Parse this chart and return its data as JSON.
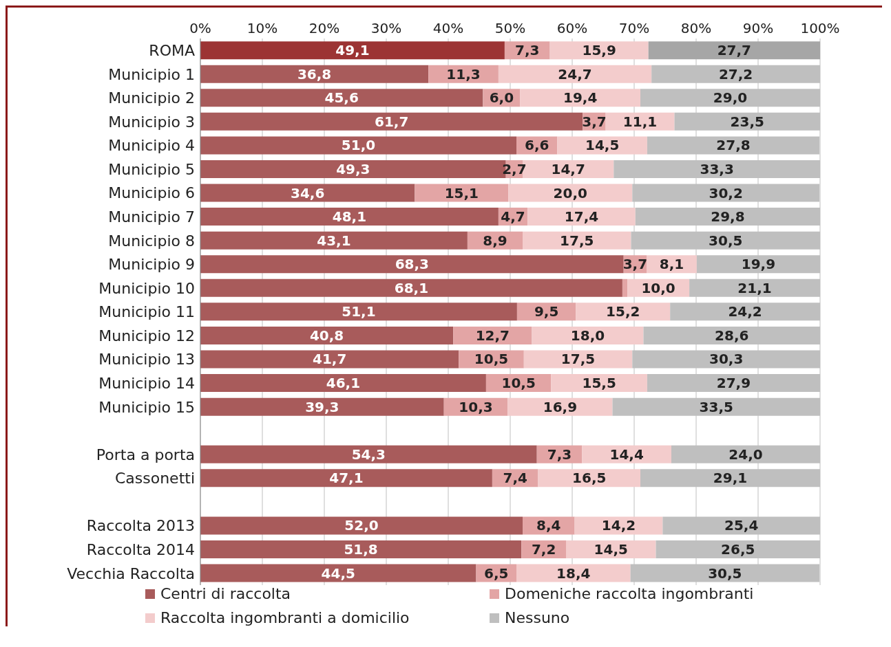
{
  "chart_data": {
    "type": "bar",
    "orientation": "horizontal",
    "stacked": true,
    "categories": [
      "ROMA",
      "Municipio 1",
      "Municipio 2",
      "Municipio 3",
      "Municipio 4",
      "Municipio 5",
      "Municipio 6",
      "Municipio 7",
      "Municipio 8",
      "Municipio 9",
      "Municipio 10",
      "Municipio 11",
      "Municipio 12",
      "Municipio 13",
      "Municipio 14",
      "Municipio 15",
      null,
      "Porta a porta",
      "Cassonetti",
      null,
      "Raccolta 2013",
      "Raccolta 2014",
      "Vecchia Raccolta"
    ],
    "series": [
      {
        "name": "Centri di raccolta",
        "color": "#a85b5b",
        "colors": [
          "#9c3434",
          "#a85b5b",
          "#a85b5b",
          "#a85b5b",
          "#a85b5b",
          "#a85b5b",
          "#a85b5b",
          "#a85b5b",
          "#a85b5b",
          "#a85b5b",
          "#a85b5b",
          "#a85b5b",
          "#a85b5b",
          "#a85b5b",
          "#a85b5b",
          "#a85b5b",
          "#a85b5b",
          "#a85b5b",
          "#a85b5b",
          "#a85b5b",
          "#a85b5b",
          "#a85b5b",
          "#a85b5b"
        ],
        "values": [
          49.1,
          36.8,
          45.6,
          61.7,
          51.0,
          49.3,
          34.6,
          48.1,
          43.1,
          68.3,
          68.1,
          51.1,
          40.8,
          41.7,
          46.1,
          39.3,
          null,
          54.3,
          47.1,
          null,
          52.0,
          51.8,
          44.5
        ],
        "value_labels": [
          "49,1",
          "36,8",
          "45,6",
          "61,7",
          "51,0",
          "49,3",
          "34,6",
          "48,1",
          "43,1",
          "68,3",
          "68,1",
          "51,1",
          "40,8",
          "41,7",
          "46,1",
          "39,3",
          null,
          "54,3",
          "47,1",
          null,
          "52,0",
          "51,8",
          "44,5"
        ]
      },
      {
        "name": "Domeniche raccolta ingombranti",
        "color": "#e3a5a5",
        "values": [
          7.3,
          11.3,
          6.0,
          3.7,
          6.6,
          2.7,
          15.1,
          4.7,
          8.9,
          3.7,
          0.8,
          9.5,
          12.7,
          10.5,
          10.5,
          10.3,
          null,
          7.3,
          7.4,
          null,
          8.4,
          7.2,
          6.5
        ],
        "value_labels": [
          "7,3",
          "11,3",
          "6,0",
          "3,7",
          "6,6",
          "2,7",
          "15,1",
          "4,7",
          "8,9",
          "3,7",
          null,
          "9,5",
          "12,7",
          "10,5",
          "10,5",
          "10,3",
          null,
          "7,3",
          "7,4",
          null,
          "8,4",
          "7,2",
          "6,5"
        ]
      },
      {
        "name": "Raccolta ingombranti a domicilio",
        "color": "#f3cccc",
        "values": [
          15.9,
          24.7,
          19.4,
          11.1,
          14.5,
          14.7,
          20.0,
          17.4,
          17.5,
          8.1,
          10.0,
          15.2,
          18.0,
          17.5,
          15.5,
          16.9,
          null,
          14.4,
          16.5,
          null,
          14.2,
          14.5,
          18.4
        ],
        "value_labels": [
          "15,9",
          "24,7",
          "19,4",
          "11,1",
          "14,5",
          "14,7",
          "20,0",
          "17,4",
          "17,5",
          "8,1",
          "10,0",
          "15,2",
          "18,0",
          "17,5",
          "15,5",
          "16,9",
          null,
          "14,4",
          "16,5",
          null,
          "14,2",
          "14,5",
          "18,4"
        ]
      },
      {
        "name": "Nessuno",
        "color": "#bfbfbf",
        "colors": [
          "#a6a6a6",
          "#bfbfbf",
          "#bfbfbf",
          "#bfbfbf",
          "#bfbfbf",
          "#bfbfbf",
          "#bfbfbf",
          "#bfbfbf",
          "#bfbfbf",
          "#bfbfbf",
          "#bfbfbf",
          "#bfbfbf",
          "#bfbfbf",
          "#bfbfbf",
          "#bfbfbf",
          "#bfbfbf",
          "#bfbfbf",
          "#bfbfbf",
          "#bfbfbf",
          "#bfbfbf",
          "#bfbfbf",
          "#bfbfbf",
          "#bfbfbf"
        ],
        "values": [
          27.7,
          27.2,
          29.0,
          23.5,
          27.8,
          33.3,
          30.2,
          29.8,
          30.5,
          19.9,
          21.1,
          24.2,
          28.6,
          30.3,
          27.9,
          33.5,
          null,
          24.0,
          29.1,
          null,
          25.4,
          26.5,
          30.5
        ],
        "value_labels": [
          "27,7",
          "27,2",
          "29,0",
          "23,5",
          "27,8",
          "33,3",
          "30,2",
          "29,8",
          "30,5",
          "19,9",
          "21,1",
          "24,2",
          "28,6",
          "30,3",
          "27,9",
          "33,5",
          null,
          "24,0",
          "29,1",
          null,
          "25,4",
          "26,5",
          "30,5"
        ]
      }
    ],
    "xlim": [
      0,
      100
    ],
    "xticks": [
      {
        "value": 0,
        "label": "0%"
      },
      {
        "value": 10,
        "label": "10%"
      },
      {
        "value": 20,
        "label": "20%"
      },
      {
        "value": 30,
        "label": "30%"
      },
      {
        "value": 40,
        "label": "40%"
      },
      {
        "value": 50,
        "label": "50%"
      },
      {
        "value": 60,
        "label": "60%"
      },
      {
        "value": 70,
        "label": "70%"
      },
      {
        "value": 80,
        "label": "80%"
      },
      {
        "value": 90,
        "label": "90%"
      },
      {
        "value": 100,
        "label": "100%"
      }
    ],
    "grid": "x",
    "legend": "bottom"
  }
}
